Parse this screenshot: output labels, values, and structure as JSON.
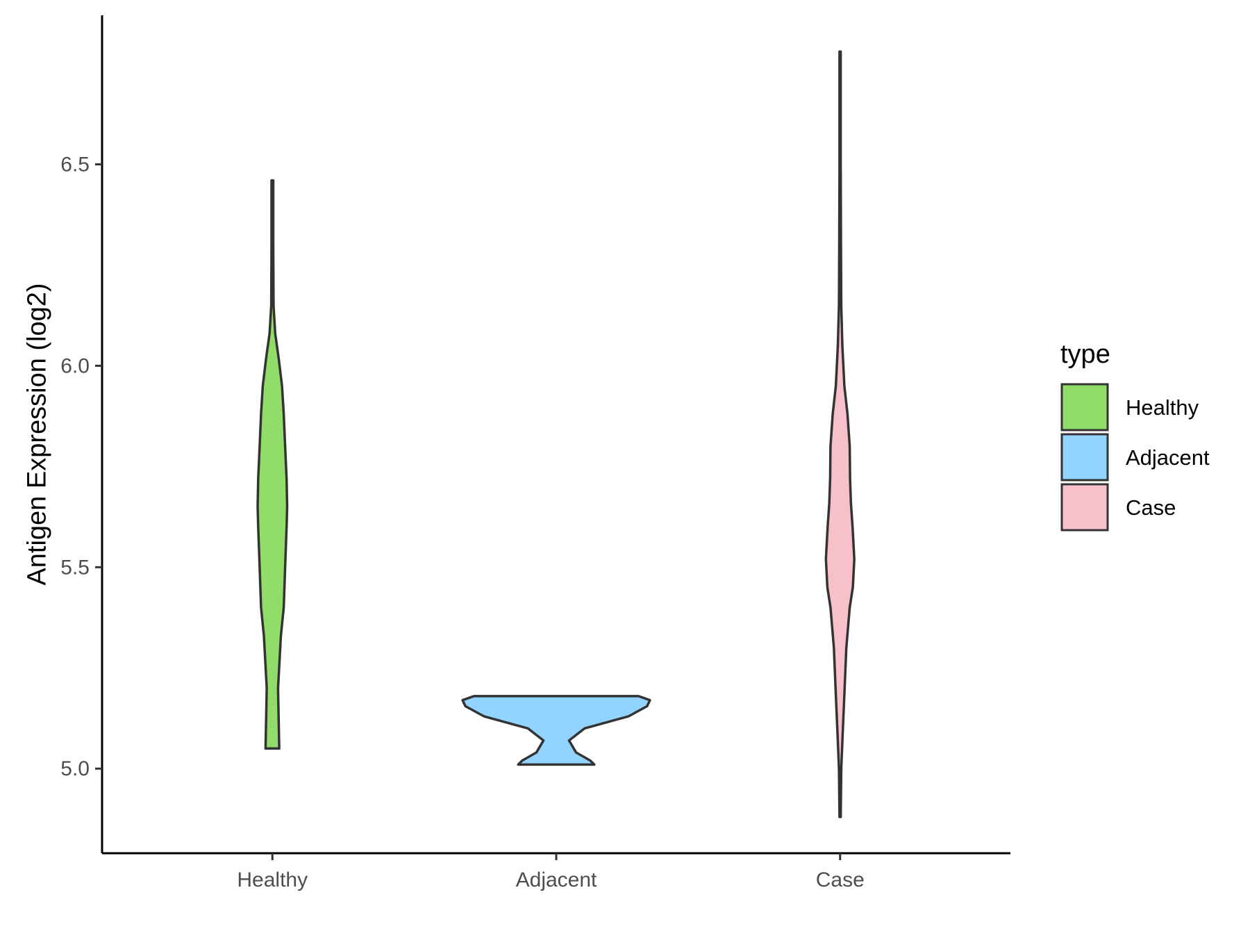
{
  "chart_data": {
    "type": "violin",
    "title": "",
    "xlabel": "",
    "ylabel": "Antigen Expression (log2)",
    "ylim": [
      4.79,
      6.87
    ],
    "yticks": [
      5.0,
      5.5,
      6.0,
      6.5
    ],
    "ytick_labels": [
      "5.0",
      "5.5",
      "6.0",
      "6.5"
    ],
    "categories": [
      "Healthy",
      "Adjacent",
      "Case"
    ],
    "grid": false,
    "legend": {
      "title": "type",
      "placement": "right",
      "entries": [
        {
          "label": "Healthy",
          "color": "#92DC6A"
        },
        {
          "label": "Adjacent",
          "color": "#92D4FF"
        },
        {
          "label": "Case",
          "color": "#F7C0CB"
        }
      ]
    },
    "series": [
      {
        "category": "Healthy",
        "color": "#92DC6A",
        "min": 5.05,
        "max": 6.46,
        "profile": [
          [
            5.05,
            0.024
          ],
          [
            5.2,
            0.02
          ],
          [
            5.33,
            0.03
          ],
          [
            5.4,
            0.04
          ],
          [
            5.5,
            0.045
          ],
          [
            5.6,
            0.05
          ],
          [
            5.65,
            0.052
          ],
          [
            5.72,
            0.05
          ],
          [
            5.8,
            0.045
          ],
          [
            5.88,
            0.04
          ],
          [
            5.95,
            0.034
          ],
          [
            6.02,
            0.022
          ],
          [
            6.08,
            0.01
          ],
          [
            6.15,
            0.004
          ],
          [
            6.3,
            0.003
          ],
          [
            6.46,
            0.003
          ]
        ]
      },
      {
        "category": "Adjacent",
        "color": "#92D4FF",
        "min": 5.01,
        "max": 5.18,
        "profile": [
          [
            5.01,
            0.134
          ],
          [
            5.02,
            0.12
          ],
          [
            5.04,
            0.07
          ],
          [
            5.07,
            0.045
          ],
          [
            5.1,
            0.1
          ],
          [
            5.13,
            0.255
          ],
          [
            5.155,
            0.32
          ],
          [
            5.17,
            0.33
          ],
          [
            5.18,
            0.29
          ]
        ]
      },
      {
        "category": "Case",
        "color": "#F7C0CB",
        "min": 4.88,
        "max": 6.78,
        "profile": [
          [
            4.88,
            0.002
          ],
          [
            5.0,
            0.004
          ],
          [
            5.1,
            0.01
          ],
          [
            5.2,
            0.016
          ],
          [
            5.3,
            0.022
          ],
          [
            5.4,
            0.034
          ],
          [
            5.45,
            0.045
          ],
          [
            5.52,
            0.05
          ],
          [
            5.6,
            0.044
          ],
          [
            5.66,
            0.038
          ],
          [
            5.72,
            0.035
          ],
          [
            5.8,
            0.034
          ],
          [
            5.88,
            0.026
          ],
          [
            5.95,
            0.015
          ],
          [
            6.05,
            0.008
          ],
          [
            6.15,
            0.004
          ],
          [
            6.3,
            0.003
          ],
          [
            6.5,
            0.002
          ],
          [
            6.6,
            0.002
          ],
          [
            6.78,
            0.002
          ]
        ]
      }
    ]
  }
}
